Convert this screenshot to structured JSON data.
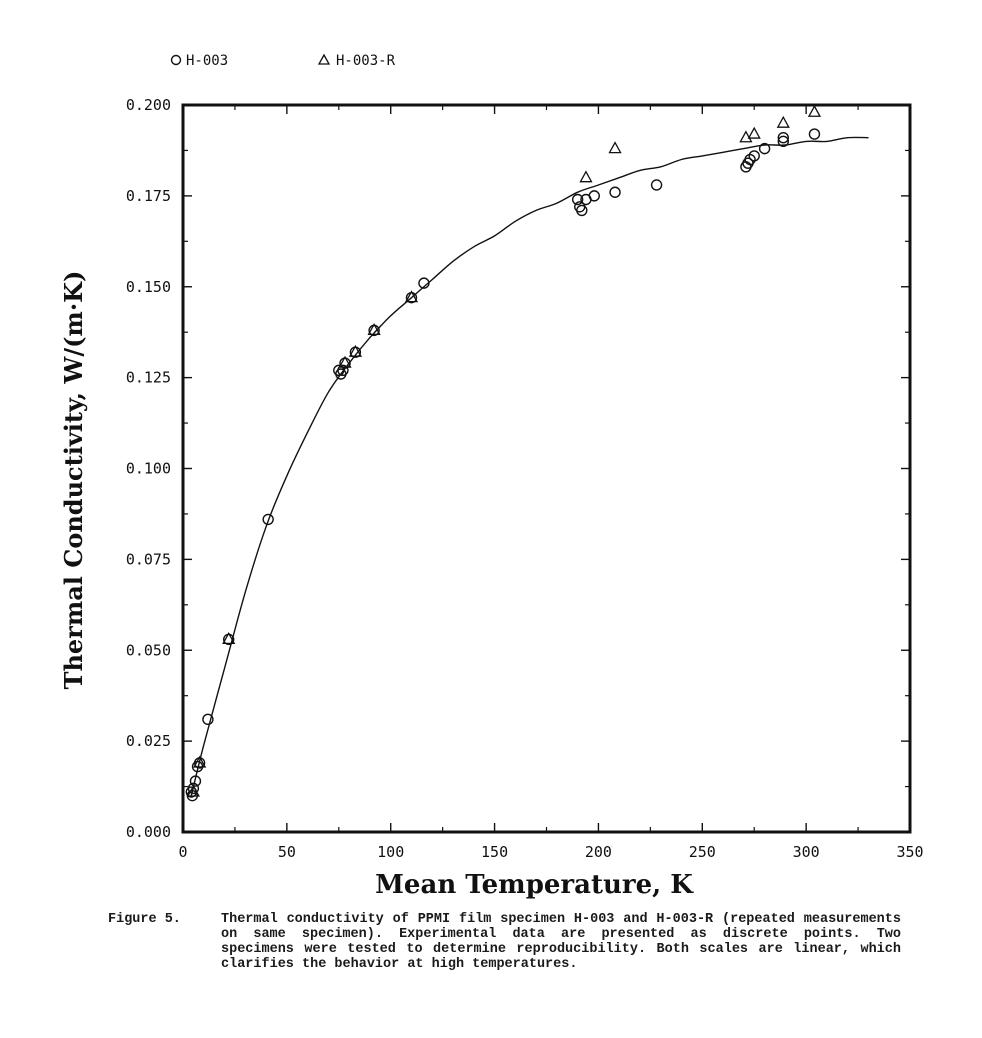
{
  "chart_data": {
    "type": "scatter",
    "xlabel": "Mean Temperature, K",
    "ylabel": "Thermal Conductivity, W/(m·K)",
    "xlim": [
      0,
      350
    ],
    "ylim": [
      0,
      0.2
    ],
    "x_ticks": [
      "0",
      "50",
      "100",
      "150",
      "200",
      "250",
      "300",
      "350"
    ],
    "y_ticks": [
      "0.000",
      "0.025",
      "0.050",
      "0.075",
      "0.100",
      "0.125",
      "0.150",
      "0.175",
      "0.200"
    ],
    "grid": false,
    "legend_position": "top-left, above plot",
    "series": [
      {
        "name": "H-003",
        "marker": "circle",
        "x": [
          4,
          4.5,
          5,
          6,
          7,
          8,
          12,
          22,
          41,
          75,
          76,
          77,
          78,
          83,
          92,
          110,
          116,
          190,
          191,
          192,
          194,
          198,
          208,
          228,
          271,
          272,
          273,
          275,
          280,
          289,
          289,
          304
        ],
        "y": [
          0.011,
          0.01,
          0.012,
          0.014,
          0.018,
          0.019,
          0.031,
          0.053,
          0.086,
          0.127,
          0.126,
          0.127,
          0.129,
          0.132,
          0.138,
          0.147,
          0.151,
          0.174,
          0.172,
          0.171,
          0.174,
          0.175,
          0.176,
          0.178,
          0.183,
          0.184,
          0.185,
          0.186,
          0.188,
          0.19,
          0.191,
          0.192
        ]
      },
      {
        "name": "H-003-R",
        "marker": "triangle",
        "x": [
          5,
          8,
          22,
          78,
          83,
          92,
          110,
          194,
          208,
          271,
          275,
          289,
          304
        ],
        "y": [
          0.011,
          0.019,
          0.053,
          0.129,
          0.132,
          0.138,
          0.147,
          0.18,
          0.188,
          0.191,
          0.192,
          0.195,
          0.198
        ]
      },
      {
        "name": "",
        "type": "line",
        "x": [
          4,
          10,
          20,
          30,
          40,
          50,
          60,
          70,
          80,
          90,
          100,
          110,
          120,
          130,
          140,
          150,
          160,
          170,
          180,
          190,
          200,
          210,
          220,
          230,
          240,
          250,
          260,
          270,
          280,
          290,
          300,
          310,
          320,
          330
        ],
        "y": [
          0.01,
          0.024,
          0.045,
          0.066,
          0.084,
          0.098,
          0.11,
          0.121,
          0.129,
          0.136,
          0.142,
          0.147,
          0.152,
          0.157,
          0.161,
          0.164,
          0.168,
          0.171,
          0.173,
          0.176,
          0.178,
          0.18,
          0.182,
          0.183,
          0.185,
          0.186,
          0.187,
          0.188,
          0.189,
          0.189,
          0.19,
          0.19,
          0.191,
          0.191
        ]
      }
    ]
  },
  "legend": [
    {
      "symbol": "○",
      "label": "H-003"
    },
    {
      "symbol": "△",
      "label": "H-003-R"
    }
  ],
  "caption": {
    "label": "Figure 5.",
    "text": "Thermal conductivity of PPMI film specimen H-003 and H-003-R (repeated measurements on same specimen). Experimental data are presented as discrete points. Two specimens were tested to determine reproducibility. Both scales are linear, which clarifies the behavior at high temperatures."
  }
}
